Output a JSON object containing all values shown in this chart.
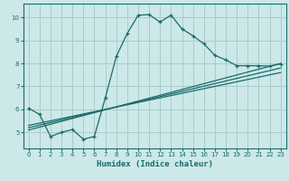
{
  "xlabel": "Humidex (Indice chaleur)",
  "bg_color": "#cce8e8",
  "grid_color": "#aacccc",
  "line_color": "#1a6b6b",
  "xlim": [
    -0.5,
    23.5
  ],
  "ylim": [
    4.3,
    10.6
  ],
  "xticks": [
    0,
    1,
    2,
    3,
    4,
    5,
    6,
    7,
    8,
    9,
    10,
    11,
    12,
    13,
    14,
    15,
    16,
    17,
    18,
    19,
    20,
    21,
    22,
    23
  ],
  "yticks": [
    5,
    6,
    7,
    8,
    9,
    10
  ],
  "line1_x": [
    0,
    1,
    2,
    3,
    4,
    5,
    6,
    7,
    8,
    9,
    10,
    11,
    12,
    13,
    14,
    15,
    16,
    17,
    18,
    19,
    20,
    21,
    22,
    23
  ],
  "line1_y": [
    6.05,
    5.78,
    4.82,
    5.0,
    5.12,
    4.7,
    4.82,
    6.5,
    8.3,
    9.3,
    10.1,
    10.12,
    9.8,
    10.1,
    9.5,
    9.2,
    8.85,
    8.35,
    8.15,
    7.9,
    7.9,
    7.9,
    7.88,
    7.98
  ],
  "line2_x": [
    0,
    23
  ],
  "line2_y": [
    5.1,
    8.0
  ],
  "line3_x": [
    0,
    23
  ],
  "line3_y": [
    5.2,
    7.8
  ],
  "line4_x": [
    0,
    23
  ],
  "line4_y": [
    5.3,
    7.6
  ]
}
